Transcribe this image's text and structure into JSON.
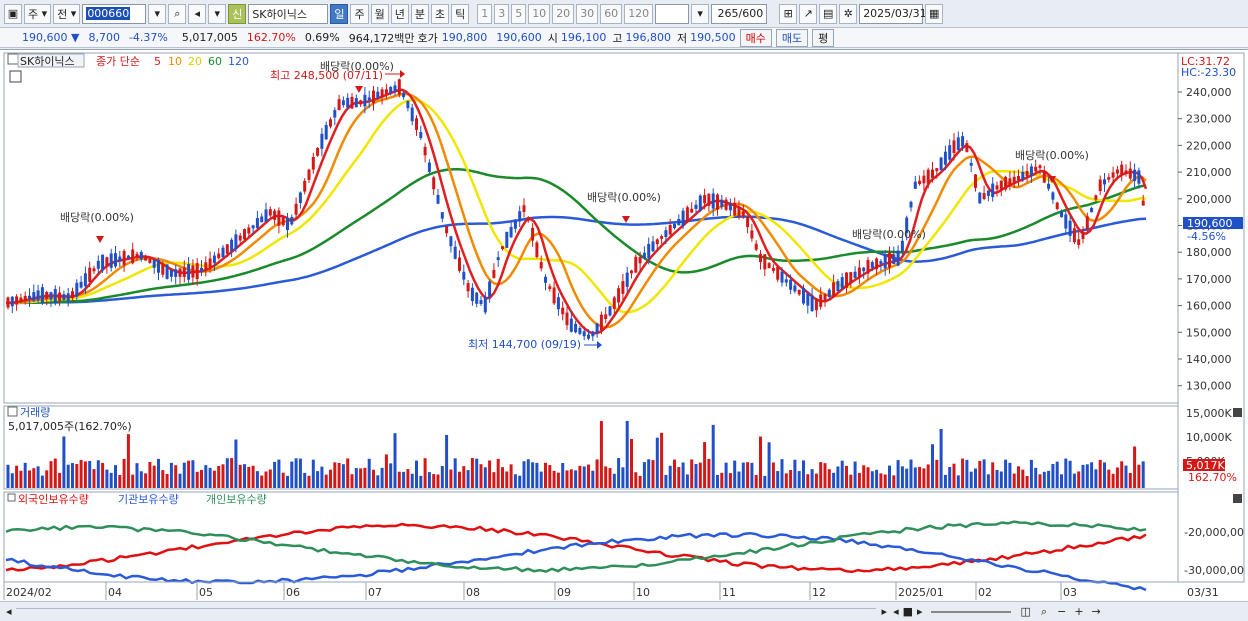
{
  "toolbar": {
    "market_type": "주",
    "compare_type": "전",
    "stock_code": "000660",
    "badge_new": "신",
    "stock_name": "SK하이닉스",
    "periods": [
      "일",
      "주",
      "월",
      "년",
      "분",
      "초",
      "틱"
    ],
    "active_period": "일",
    "intervals": [
      "1",
      "3",
      "5",
      "10",
      "20",
      "30",
      "60",
      "120"
    ],
    "data_count": "265",
    "data_max": "/600",
    "date": "2025/03/31"
  },
  "quote": {
    "price": "190,600 ▼",
    "change": "8,700",
    "change_pct": "-4.37%",
    "volume": "5,017,005",
    "volume_ratio": "162.70%",
    "turnover": "0.69%",
    "amount": "964,172백만",
    "ask_bid_label": "호가",
    "ask": "190,800",
    "bid": "190,600",
    "open_label": "시",
    "open": "196,100",
    "high_label": "고",
    "high": "196,800",
    "low_label": "저",
    "low": "190,500",
    "buy_label": "매수",
    "sell_label": "매도",
    "eval_label": "평"
  },
  "price_panel": {
    "name_tag": "SK하이닉스",
    "ma_title": "종가 단순",
    "ma_periods": [
      "5",
      "10",
      "20",
      "60",
      "120"
    ],
    "lc": "LC:31.72",
    "hc": "HC:-23.30",
    "high_label": "최고 248,500 (07/11)",
    "low_label": "최저 144,700 (09/19)",
    "dividend_labels": [
      "배당락(0.00%)",
      "배당락(0.00%)",
      "배당락(0.00%)",
      "배당락(0.00%)",
      "배당락(0.00%)"
    ],
    "y_ticks": [
      "240,000",
      "230,000",
      "220,000",
      "210,000",
      "200,000",
      "190,000",
      "180,000",
      "170,000",
      "160,000",
      "150,000",
      "140,000",
      "130,000"
    ],
    "current_price": "190,600",
    "current_pct": "-4.56%"
  },
  "volume_panel": {
    "title": "거래량",
    "current": "5,017,005주(162.70%)",
    "y_ticks": [
      "15,000K",
      "10,000K",
      "5,000K"
    ],
    "current_badge": "5,017K",
    "current_pct": "162.70%"
  },
  "holdings_panel": {
    "series_labels": [
      "외국인보유수량",
      "기관보유수량",
      "개인보유수량"
    ],
    "y_ticks": [
      "-20,000,00",
      "-30,000,00"
    ]
  },
  "x_axis": {
    "labels": [
      "2024/02",
      "04",
      "05",
      "06",
      "07",
      "08",
      "09",
      "10",
      "11",
      "12",
      "2025/01",
      "02",
      "03"
    ],
    "right_label": "03/31"
  },
  "colors": {
    "ma5": "#e02020",
    "ma10": "#f08a00",
    "ma20": "#f0e600",
    "ma60": "#1a8a2a",
    "ma120": "#2a5ad8",
    "up": "#d41818",
    "down": "#1f50c8",
    "foreign": "#e01010",
    "institution": "#2a5ad8",
    "individual": "#2f8f5a"
  }
}
